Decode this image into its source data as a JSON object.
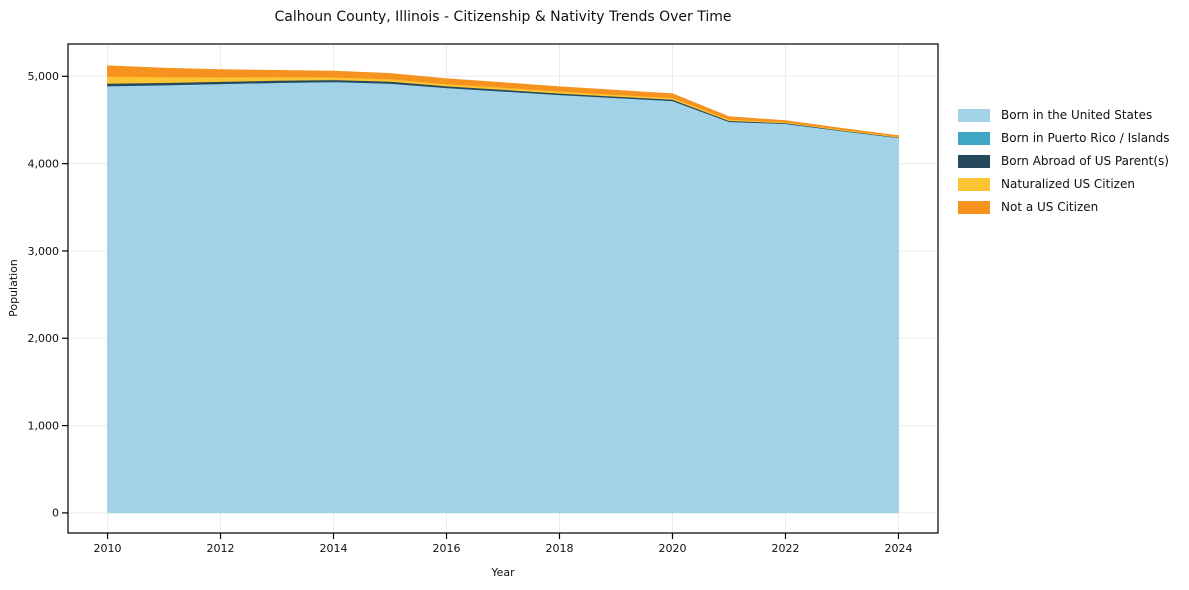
{
  "chart_data": {
    "type": "area",
    "stacked": true,
    "title": "Calhoun County, Illinois - Citizenship & Nativity Trends Over Time",
    "xlabel": "Year",
    "ylabel": "Population",
    "x": [
      2010,
      2011,
      2012,
      2013,
      2014,
      2015,
      2016,
      2017,
      2018,
      2019,
      2020,
      2021,
      2022,
      2023,
      2024
    ],
    "series": [
      {
        "name": "Born in the United States",
        "color": "#a2d2e8",
        "values": [
          4890,
          4900,
          4915,
          4928,
          4938,
          4920,
          4869,
          4830,
          4789,
          4755,
          4721,
          4481,
          4458,
          4375,
          4297
        ]
      },
      {
        "name": "Born in Puerto Rico / Islands",
        "color": "#3fa7c4",
        "values": [
          0,
          0,
          0,
          0,
          0,
          0,
          0,
          0,
          0,
          0,
          0,
          0,
          0,
          0,
          0
        ]
      },
      {
        "name": "Born Abroad of US Parent(s)",
        "color": "#27495c",
        "values": [
          30,
          28,
          26,
          25,
          23,
          22,
          20,
          19,
          18,
          16,
          15,
          12,
          8,
          7,
          5
        ]
      },
      {
        "name": "Naturalized US Citizen",
        "color": "#fcc433",
        "values": [
          80,
          65,
          50,
          40,
          30,
          28,
          25,
          24,
          22,
          21,
          20,
          15,
          10,
          9,
          8
        ]
      },
      {
        "name": "Not a US Citizen",
        "color": "#f6921e",
        "values": [
          120,
          100,
          85,
          75,
          68,
          62,
          58,
          54,
          51,
          48,
          44,
          30,
          16,
          12,
          10
        ]
      }
    ],
    "xticks": [
      2010,
      2012,
      2014,
      2016,
      2018,
      2020,
      2022,
      2024
    ],
    "yticks": [
      0,
      1000,
      2000,
      3000,
      4000,
      5000
    ],
    "xlim": [
      2009.3,
      2024.7
    ],
    "ylim": [
      -230,
      5370
    ],
    "grid": true,
    "legend_position": "right"
  },
  "colors": {
    "grid": "#ebebeb",
    "axis": "#000000",
    "text": "#111111",
    "background": "#ffffff"
  }
}
